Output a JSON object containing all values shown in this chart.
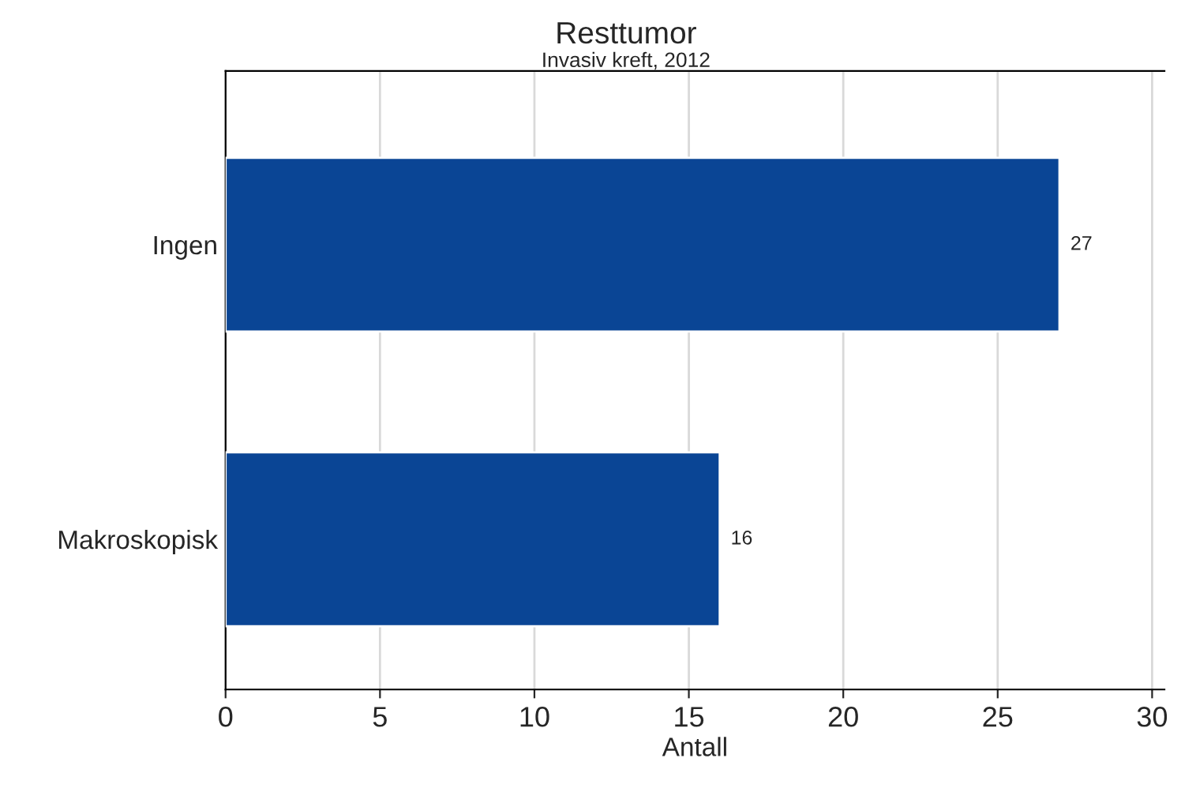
{
  "chart_data": {
    "type": "bar",
    "orientation": "horizontal",
    "title": "Resttumor",
    "subtitle": "Invasiv kreft, 2012",
    "xlabel": "Antall",
    "categories": [
      "Ingen",
      "Makroskopisk"
    ],
    "values": [
      27,
      16
    ],
    "color": "#0a4595",
    "xlim": [
      0,
      30.4
    ],
    "xticks": [
      0,
      5,
      10,
      15,
      20,
      25,
      30
    ],
    "grid": "x",
    "data_labels": true
  }
}
